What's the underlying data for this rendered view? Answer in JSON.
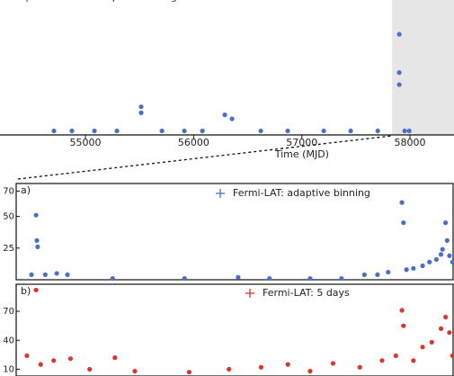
{
  "chart_data": [
    {
      "type": "scatter",
      "x": [
        54709,
        54875,
        55083,
        55291,
        55515,
        55515,
        55707,
        55914,
        56081,
        56288,
        56355,
        56621,
        56870,
        57203,
        57452,
        57702,
        57901,
        57901,
        57901,
        57951,
        57993
      ],
      "series": [
        {
          "name": "Fermi-LAT: adaptive binning",
          "color": "#4a6fc7",
          "values": [
            2,
            2,
            2,
            2,
            14,
            11,
            2,
            2,
            2,
            10,
            8,
            2,
            2,
            2,
            2,
            2,
            50,
            31,
            25,
            2,
            2
          ]
        }
      ],
      "xlim": [
        54210,
        58407
      ],
      "ylim": [
        0,
        76
      ],
      "xticks": [
        55000,
        56000,
        57000,
        58000
      ],
      "xlabel": "Time (MJD)",
      "shaded_xrange": [
        57835,
        58407
      ]
    },
    {
      "type": "scatter",
      "panel_label": "a)",
      "x": [
        57855,
        57861,
        57862,
        57863,
        57873,
        57888,
        57902,
        57961,
        58055,
        58125,
        58166,
        58219,
        58260,
        58290,
        58307,
        58321,
        58339,
        58341,
        58345,
        58354,
        58366,
        58375,
        58384,
        58390,
        58392,
        58396,
        58398,
        58401,
        58405
      ],
      "series": [
        {
          "name": "Fermi-LAT: adaptive binning",
          "color": "#4a6fc7",
          "values": [
            4,
            51,
            31,
            26,
            4,
            5,
            4,
            1,
            1,
            2,
            1,
            1,
            1,
            4,
            4,
            6,
            61,
            45,
            8,
            9,
            11,
            14,
            16,
            20,
            24,
            45,
            31,
            19,
            14
          ]
        }
      ],
      "xlim": [
        57835,
        58407
      ],
      "ylim": [
        0,
        76
      ],
      "yticks": [
        25,
        50,
        70
      ]
    },
    {
      "type": "scatter",
      "panel_label": "b)",
      "x": [
        57861,
        57849,
        57867,
        57884,
        57906,
        57931,
        57964,
        57990,
        58061,
        58113,
        58155,
        58190,
        58219,
        58249,
        58284,
        58313,
        58331,
        58339,
        58341,
        58354,
        58366,
        58378,
        58390,
        58396,
        58401,
        58405
      ],
      "series": [
        {
          "name": "Fermi-LAT: 5 days",
          "color": "#d9372e",
          "values": [
            92,
            24,
            15,
            19,
            21,
            10,
            22,
            8,
            7,
            10,
            12,
            15,
            8,
            16,
            12,
            19,
            24,
            71,
            55,
            19,
            33,
            38,
            52,
            64,
            48,
            24
          ]
        }
      ],
      "xlim": [
        57835,
        58407
      ],
      "ylim": [
        3,
        98
      ],
      "yticks": [
        10,
        40,
        70
      ]
    }
  ]
}
